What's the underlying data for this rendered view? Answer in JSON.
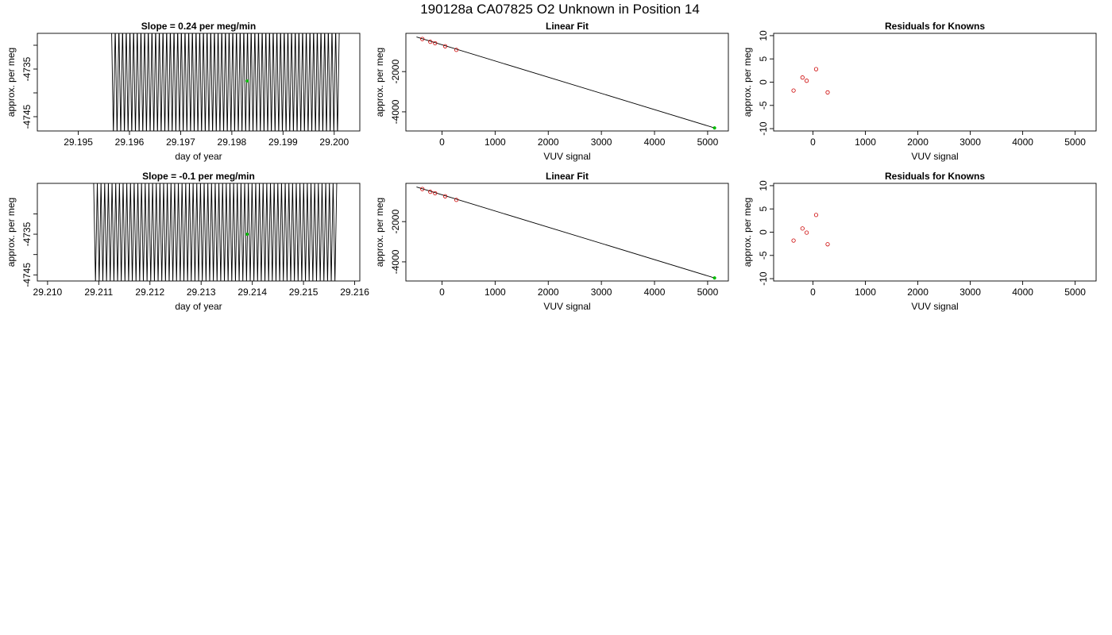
{
  "page": {
    "title": "190128a      CA07825   O2 Unknown in Position  14"
  },
  "colors": {
    "known": "#cc0000",
    "unknown": "#00bb00",
    "trace": "#000000",
    "axis": "#000000"
  },
  "chart_data": [
    {
      "id": "trace1",
      "type": "line",
      "title": "Slope =  0.24  per meg/min",
      "xlabel": "day of year",
      "ylabel": "approx. per meg",
      "xlim": [
        29.1942,
        29.2005
      ],
      "ylim": [
        -4748,
        -4727.5
      ],
      "xticks": [
        29.195,
        29.196,
        29.197,
        29.198,
        29.199,
        29.2
      ],
      "xtick_labels": [
        "29.195",
        "29.196",
        "29.197",
        "29.198",
        "29.199",
        "29.200"
      ],
      "yticks": [
        -4745,
        -4740,
        -4735,
        -4730
      ],
      "ytick_labels": [
        "-4745",
        "",
        "-4735",
        ""
      ],
      "series": [
        {
          "style": "oscillation",
          "x_start": 29.19565,
          "x_end": 29.2001,
          "cycles": 62,
          "low": -4749,
          "high": -4726
        }
      ],
      "marker": {
        "x": 29.1983,
        "y": -4737.5
      }
    },
    {
      "id": "fit1",
      "type": "scatter",
      "title": "Linear Fit",
      "xlabel": "VUV signal",
      "ylabel": "approx. per meg",
      "xlim": [
        -680,
        5390
      ],
      "ylim": [
        -4950,
        -100
      ],
      "xticks": [
        0,
        1000,
        2000,
        3000,
        4000,
        5000
      ],
      "xtick_labels": [
        "0",
        "1000",
        "2000",
        "3000",
        "4000",
        "5000"
      ],
      "yticks": [
        -4000,
        -2000
      ],
      "ytick_labels": [
        "-4000",
        "-2000"
      ],
      "line": {
        "x": [
          -480,
          5130
        ],
        "y": [
          -280,
          -4800
        ]
      },
      "knowns": {
        "x": [
          -370,
          -220,
          -130,
          60,
          270
        ],
        "y": [
          -380,
          -520,
          -590,
          -740,
          -920
        ]
      },
      "unknown": {
        "x": 5130,
        "y": -4800
      }
    },
    {
      "id": "res1",
      "type": "scatter",
      "title": "Residuals for Knowns",
      "xlabel": "VUV signal",
      "ylabel": "approx. per meg",
      "xlim": [
        -750,
        5400
      ],
      "ylim": [
        -10.5,
        10.5
      ],
      "xticks": [
        0,
        1000,
        2000,
        3000,
        4000,
        5000
      ],
      "xtick_labels": [
        "0",
        "1000",
        "2000",
        "3000",
        "4000",
        "5000"
      ],
      "yticks": [
        -10,
        -5,
        0,
        5,
        10
      ],
      "ytick_labels": [
        "-10",
        "-5",
        "0",
        "5",
        "10"
      ],
      "knowns": {
        "x": [
          -370,
          -200,
          -120,
          60,
          280
        ],
        "y": [
          -1.8,
          1.0,
          0.3,
          2.8,
          -2.2
        ]
      }
    },
    {
      "id": "trace2",
      "type": "line",
      "title": "Slope =  -0.1  per meg/min",
      "xlabel": "day of year",
      "ylabel": "approx. per meg",
      "xlim": [
        29.2098,
        29.2161
      ],
      "ylim": [
        -4746.5,
        -4722.5
      ],
      "xticks": [
        29.21,
        29.211,
        29.212,
        29.213,
        29.214,
        29.215,
        29.216
      ],
      "xtick_labels": [
        "29.210",
        "29.211",
        "29.212",
        "29.213",
        "29.214",
        "29.215",
        "29.216"
      ],
      "yticks": [
        -4745,
        -4740,
        -4735,
        -4730
      ],
      "ytick_labels": [
        "-4745",
        "",
        "-4735",
        ""
      ],
      "series": [
        {
          "style": "oscillation",
          "x_start": 29.2109,
          "x_end": 29.21565,
          "cycles": 66,
          "low": -4747,
          "high": -4722
        }
      ],
      "marker": {
        "x": 29.2139,
        "y": -4735
      }
    },
    {
      "id": "fit2",
      "type": "scatter",
      "title": "Linear Fit",
      "xlabel": "VUV signal",
      "ylabel": "approx. per meg",
      "xlim": [
        -680,
        5390
      ],
      "ylim": [
        -4950,
        -100
      ],
      "xticks": [
        0,
        1000,
        2000,
        3000,
        4000,
        5000
      ],
      "xtick_labels": [
        "0",
        "1000",
        "2000",
        "3000",
        "4000",
        "5000"
      ],
      "yticks": [
        -4000,
        -2000
      ],
      "ytick_labels": [
        "-4000",
        "-2000"
      ],
      "line": {
        "x": [
          -480,
          5130
        ],
        "y": [
          -280,
          -4800
        ]
      },
      "knowns": {
        "x": [
          -370,
          -220,
          -130,
          60,
          270
        ],
        "y": [
          -380,
          -520,
          -590,
          -740,
          -920
        ]
      },
      "unknown": {
        "x": 5130,
        "y": -4800
      }
    },
    {
      "id": "res2",
      "type": "scatter",
      "title": "Residuals for Knowns",
      "xlabel": "VUV signal",
      "ylabel": "approx. per meg",
      "xlim": [
        -750,
        5400
      ],
      "ylim": [
        -10.5,
        10.5
      ],
      "xticks": [
        0,
        1000,
        2000,
        3000,
        4000,
        5000
      ],
      "xtick_labels": [
        "0",
        "1000",
        "2000",
        "3000",
        "4000",
        "5000"
      ],
      "yticks": [
        -10,
        -5,
        0,
        5,
        10
      ],
      "ytick_labels": [
        "-10",
        "-5",
        "0",
        "5",
        "10"
      ],
      "knowns": {
        "x": [
          -370,
          -200,
          -120,
          60,
          280
        ],
        "y": [
          -1.8,
          0.8,
          -0.1,
          3.7,
          -2.6
        ]
      }
    }
  ]
}
